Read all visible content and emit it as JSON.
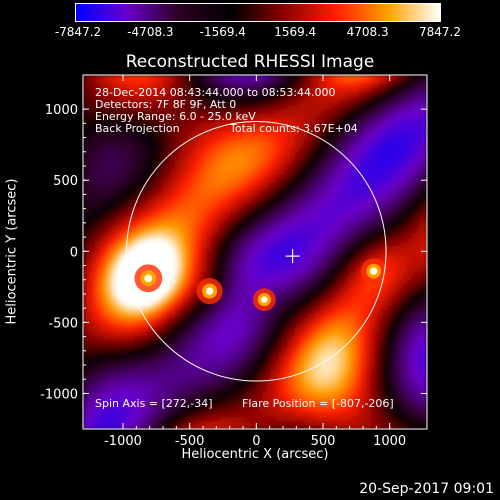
{
  "chart_data": {
    "type": "heatmap",
    "title": "Reconstructed RHESSI Image",
    "xlabel": "Heliocentric X (arcsec)",
    "ylabel": "Heliocentric Y (arcsec)",
    "xlim": [
      -1300,
      1280
    ],
    "ylim": [
      -1250,
      1240
    ],
    "xticks": [
      -1000,
      -500,
      0,
      500,
      1000
    ],
    "yticks": [
      -1000,
      -500,
      0,
      500,
      1000
    ],
    "colorbar": {
      "min": -7847.2,
      "max": 7847.2,
      "ticks": [
        "-7847.2",
        "-4708.3",
        "-1569.4",
        "1569.4",
        "4708.3",
        "7847.2"
      ],
      "colors": [
        "#0000ff",
        "#6a00c8",
        "#2a0020",
        "#000000",
        "#8b0000",
        "#ff2000",
        "#ffa000",
        "#ffffff"
      ]
    },
    "annotations": [
      "28-Dec-2014 08:43:44.000 to 08:53:44.000",
      "Detectors: 7F 8F 9F, Att 0",
      "Energy Range: 6.0 - 25.0 keV",
      "Back Projection",
      "Total counts: 3.67E+04"
    ],
    "spin_axis": "Spin Axis = [272,-34]",
    "flare_position": "Flare Position = [-807,-206]",
    "solar_limb_center": [
      0,
      0
    ],
    "solar_limb_radius": 973,
    "crosshair": [
      272,
      -34
    ],
    "bright_sources": [
      {
        "x": -810,
        "y": -190,
        "intensity": 7800
      },
      {
        "x": -350,
        "y": -280,
        "intensity": 7200
      },
      {
        "x": 60,
        "y": -340,
        "intensity": 6000
      },
      {
        "x": 880,
        "y": -140,
        "intensity": 7000
      }
    ]
  },
  "footer": {
    "date": "20-Sep-2017 09:01"
  }
}
